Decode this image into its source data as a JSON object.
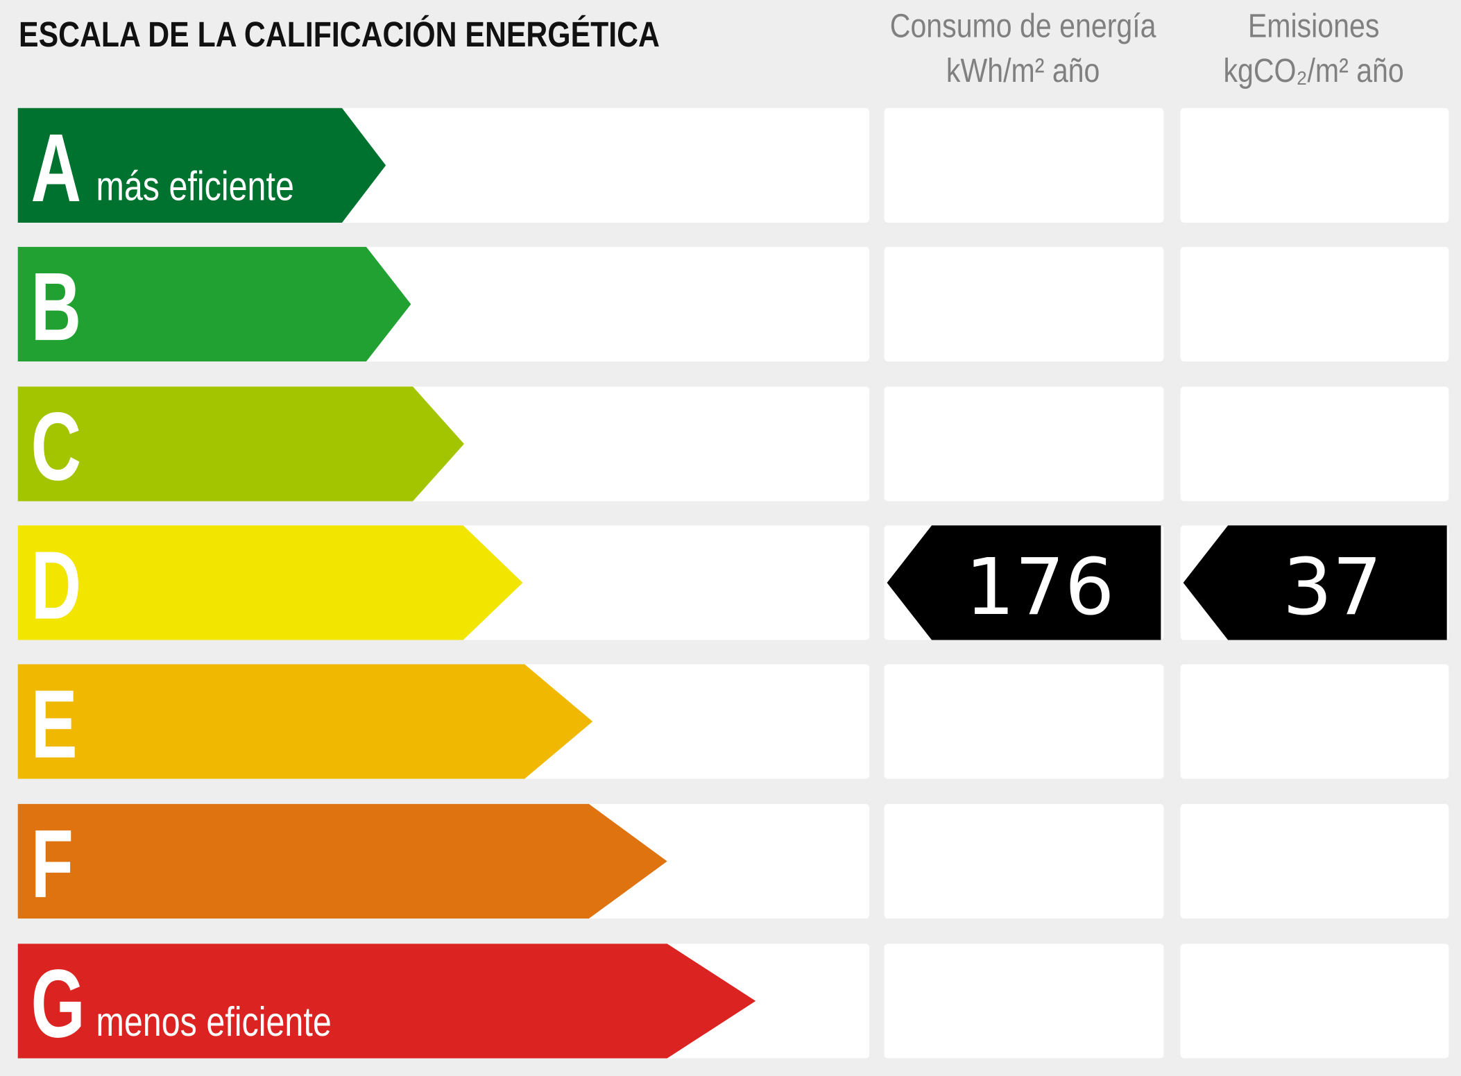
{
  "header": {
    "title": "ESCALA DE LA CALIFICACIÓN ENERGÉTICA"
  },
  "columns": [
    {
      "title": "Consumo de energía",
      "unit": "kWh/m² año"
    },
    {
      "title": "Emisiones",
      "unit": "kgCO₂/m² año"
    }
  ],
  "rows": [
    {
      "letter": "A",
      "label": "más eficiente",
      "color": "#00722f"
    },
    {
      "letter": "B",
      "color": "#21a131"
    },
    {
      "letter": "C",
      "color": "#a3c500"
    },
    {
      "letter": "D",
      "color": "#f2e500",
      "energy": 176,
      "emissions": 37
    },
    {
      "letter": "E",
      "color": "#f0b800"
    },
    {
      "letter": "F",
      "color": "#de7310"
    },
    {
      "letter": "G",
      "label": "menos eficiente",
      "color": "#db2321"
    }
  ]
}
